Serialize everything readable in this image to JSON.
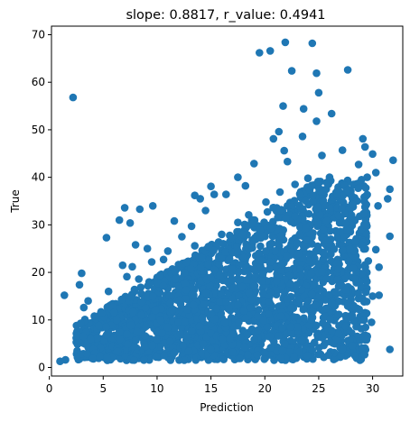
{
  "chart_data": {
    "type": "scatter",
    "title": "slope: 0.8817, r_value: 0.4941",
    "xlabel": "Prediction",
    "ylabel": "True",
    "xlim": [
      0.2,
      32.8
    ],
    "ylim": [
      -1.8,
      71.8
    ],
    "xticks": [
      0,
      5,
      10,
      15,
      20,
      25,
      30
    ],
    "yticks": [
      0,
      10,
      20,
      30,
      40,
      50,
      60,
      70
    ],
    "grid": false,
    "legend": "none",
    "marker_color": "#1f77b4",
    "series": [
      {
        "points": [
          [
            2.2,
            56.8
          ],
          [
            1.4,
            15.2
          ],
          [
            1.0,
            1.3
          ],
          [
            1.5,
            1.6
          ],
          [
            2.5,
            6.2
          ],
          [
            2.8,
            17.4
          ],
          [
            3.0,
            19.8
          ],
          [
            3.2,
            12.6
          ],
          [
            3.3,
            10.1
          ],
          [
            3.6,
            14.0
          ],
          [
            4.0,
            2.5
          ],
          [
            4.3,
            7.0
          ],
          [
            5.3,
            27.3
          ],
          [
            6.5,
            31.0
          ],
          [
            7.0,
            33.6
          ],
          [
            7.5,
            30.4
          ],
          [
            8.4,
            33.3
          ],
          [
            9.1,
            25.0
          ],
          [
            9.6,
            34.0
          ],
          [
            11.0,
            24.5
          ],
          [
            12.3,
            27.5
          ],
          [
            13.5,
            36.2
          ],
          [
            14.0,
            35.5
          ],
          [
            15.3,
            36.4
          ],
          [
            11.6,
            30.8
          ],
          [
            13.2,
            29.7
          ],
          [
            14.5,
            33.0
          ],
          [
            15.0,
            38.1
          ],
          [
            16.4,
            36.4
          ],
          [
            19.5,
            66.2
          ],
          [
            20.5,
            66.6
          ],
          [
            21.9,
            68.4
          ],
          [
            24.4,
            68.2
          ],
          [
            22.5,
            62.4
          ],
          [
            24.8,
            61.9
          ],
          [
            27.7,
            62.6
          ],
          [
            25.0,
            57.8
          ],
          [
            21.7,
            55.0
          ],
          [
            23.6,
            54.4
          ],
          [
            26.2,
            53.4
          ],
          [
            24.8,
            51.8
          ],
          [
            21.3,
            49.6
          ],
          [
            19.0,
            42.9
          ],
          [
            20.8,
            48.1
          ],
          [
            21.8,
            45.6
          ],
          [
            23.5,
            48.6
          ],
          [
            25.3,
            44.6
          ],
          [
            27.2,
            45.7
          ],
          [
            28.7,
            42.7
          ],
          [
            29.1,
            48.1
          ],
          [
            29.3,
            46.4
          ],
          [
            30.0,
            44.9
          ],
          [
            31.9,
            43.6
          ],
          [
            30.3,
            41.0
          ],
          [
            31.6,
            37.5
          ],
          [
            31.4,
            35.5
          ],
          [
            30.5,
            34.0
          ],
          [
            31.6,
            27.6
          ],
          [
            30.3,
            24.8
          ],
          [
            30.6,
            21.1
          ],
          [
            30.6,
            15.2
          ],
          [
            30.0,
            15.0
          ],
          [
            28.7,
            14.5
          ],
          [
            29.9,
            9.5
          ],
          [
            29.5,
            6.6
          ],
          [
            31.6,
            3.8
          ],
          [
            28.4,
            3.6
          ],
          [
            27.8,
            3.2
          ],
          [
            27.3,
            3.2
          ],
          [
            26.5,
            5.0
          ],
          [
            18.2,
            38.2
          ],
          [
            17.5,
            40.0
          ],
          [
            22.1,
            43.3
          ],
          [
            26.0,
            40.0
          ],
          [
            29.5,
            40.0
          ],
          [
            27.9,
            37.0
          ],
          [
            4.5,
            4.0
          ],
          [
            5.5,
            6.0
          ],
          [
            6.2,
            4.0
          ],
          [
            3.7,
            6.1
          ],
          [
            4.8,
            11.7
          ],
          [
            5.5,
            16.0
          ],
          [
            6.0,
            11.5
          ],
          [
            7.2,
            19.1
          ],
          [
            7.9,
            16.4
          ],
          [
            8.3,
            18.6
          ],
          [
            9.2,
            14.3
          ],
          [
            10.1,
            13.2
          ],
          [
            10.4,
            19.6
          ],
          [
            11.5,
            17.5
          ],
          [
            6.8,
            21.5
          ],
          [
            7.7,
            21.2
          ],
          [
            8.0,
            25.8
          ],
          [
            9.5,
            22.2
          ],
          [
            10.6,
            22.7
          ],
          [
            12.6,
            22.0
          ],
          [
            13.5,
            25.6
          ],
          [
            16.0,
            28.0
          ],
          [
            17.5,
            30.5
          ],
          [
            18.5,
            32.1
          ],
          [
            20.1,
            34.8
          ],
          [
            21.4,
            36.9
          ],
          [
            22.8,
            38.5
          ],
          [
            24.0,
            39.8
          ],
          [
            25.7,
            37.5
          ],
          [
            27.0,
            35.2
          ],
          [
            28.2,
            33.8
          ],
          [
            29.3,
            31.5
          ],
          [
            28.6,
            26.6
          ],
          [
            29.6,
            22.4
          ],
          [
            29.0,
            18.3
          ],
          [
            28.2,
            12.1
          ],
          [
            27.4,
            8.9
          ],
          [
            26.3,
            11.1
          ],
          [
            14.6,
            3.0
          ],
          [
            16.1,
            2.5
          ],
          [
            17.7,
            3.2
          ],
          [
            19.3,
            2.8
          ],
          [
            20.6,
            3.0
          ],
          [
            22.0,
            2.6
          ]
        ]
      }
    ]
  }
}
